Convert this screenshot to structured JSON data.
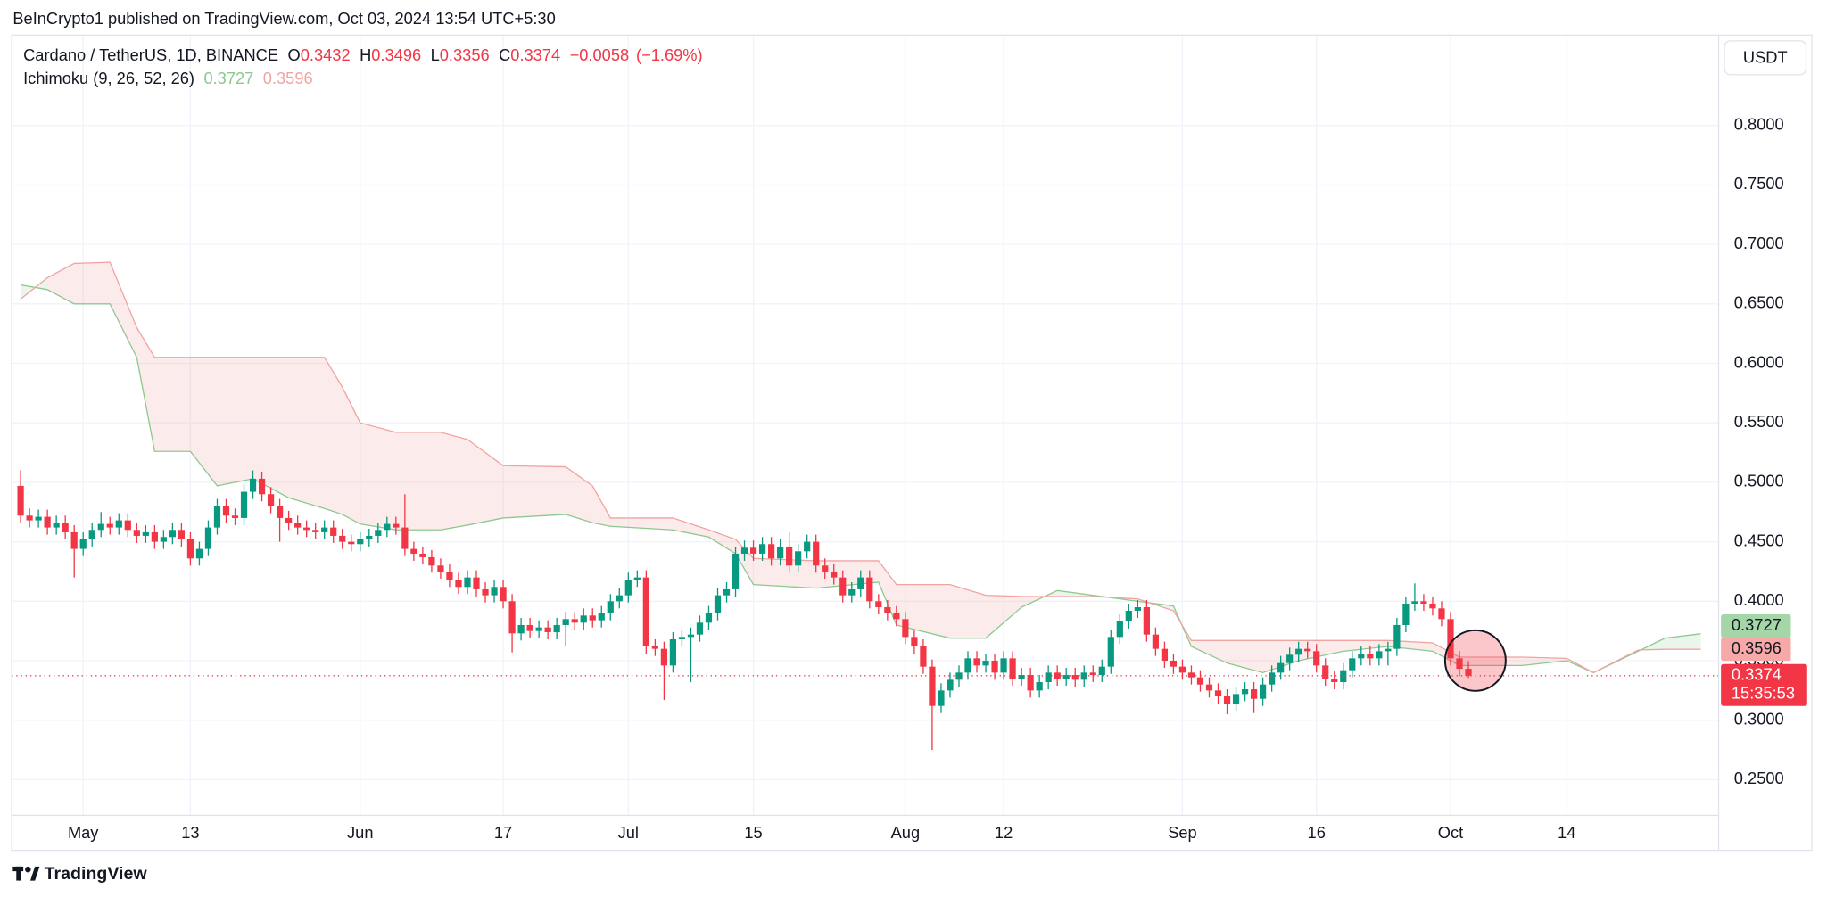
{
  "chart_data": {
    "type": "candlestick",
    "publisher": "BeInCrypto1 published on TradingView.com, Oct 03, 2024 13:54 UTC+5:30",
    "symbol": "Cardano / TetherUS, 1D, BINANCE",
    "ohlc_labels": [
      "O",
      "H",
      "L",
      "C"
    ],
    "change": "−0.0058",
    "change_pct": "(−1.69%)",
    "indicator": "Ichimoku (9, 26, 52, 26)",
    "currency": "USDT",
    "countdown": "15:35:53",
    "brand": "TradingView",
    "up_color": "#089981",
    "down_color": "#f23645",
    "grid": true,
    "xlim": [
      "Apr 23",
      "Oct 31"
    ],
    "ylim": [
      0.22,
      0.876
    ],
    "xticks": [
      {
        "value": "May 1",
        "label": "May"
      },
      {
        "value": "May 13",
        "label": "13"
      },
      {
        "value": "Jun 1",
        "label": "Jun"
      },
      {
        "value": "Jun 17",
        "label": "17"
      },
      {
        "value": "Jul 1",
        "label": "Jul"
      },
      {
        "value": "Jul 15",
        "label": "15"
      },
      {
        "value": "Aug 1",
        "label": "Aug"
      },
      {
        "value": "Aug 12",
        "label": "12"
      },
      {
        "value": "Sep 1",
        "label": "Sep"
      },
      {
        "value": "Sep 16",
        "label": "16"
      },
      {
        "value": "Oct 1",
        "label": "Oct"
      },
      {
        "value": "Oct 14",
        "label": "14"
      }
    ],
    "yticks": [
      {
        "value": 0.25,
        "label": "0.2500"
      },
      {
        "value": 0.3,
        "label": "0.3000"
      },
      {
        "value": 0.35,
        "label": "0.3500"
      },
      {
        "value": 0.4,
        "label": "0.4000"
      },
      {
        "value": 0.45,
        "label": "0.4500"
      },
      {
        "value": 0.5,
        "label": "0.5000"
      },
      {
        "value": 0.55,
        "label": "0.5500"
      },
      {
        "value": 0.6,
        "label": "0.6000"
      },
      {
        "value": 0.65,
        "label": "0.6500"
      },
      {
        "value": 0.7,
        "label": "0.7000"
      },
      {
        "value": 0.75,
        "label": "0.7500"
      },
      {
        "value": 0.8,
        "label": "0.8000"
      }
    ],
    "x": [
      "Apr 24",
      "Apr 25",
      "Apr 26",
      "Apr 27",
      "Apr 28",
      "Apr 29",
      "Apr 30",
      "May 1",
      "May 2",
      "May 3",
      "May 4",
      "May 5",
      "May 6",
      "May 7",
      "May 8",
      "May 9",
      "May 10",
      "May 11",
      "May 12",
      "May 13",
      "May 14",
      "May 15",
      "May 16",
      "May 17",
      "May 18",
      "May 19",
      "May 20",
      "May 21",
      "May 22",
      "May 23",
      "May 24",
      "May 25",
      "May 26",
      "May 27",
      "May 28",
      "May 29",
      "May 30",
      "May 31",
      "Jun 1",
      "Jun 2",
      "Jun 3",
      "Jun 4",
      "Jun 5",
      "Jun 6",
      "Jun 7",
      "Jun 8",
      "Jun 9",
      "Jun 10",
      "Jun 11",
      "Jun 12",
      "Jun 13",
      "Jun 14",
      "Jun 15",
      "Jun 16",
      "Jun 17",
      "Jun 18",
      "Jun 19",
      "Jun 20",
      "Jun 21",
      "Jun 22",
      "Jun 23",
      "Jun 24",
      "Jun 25",
      "Jun 26",
      "Jun 27",
      "Jun 28",
      "Jun 29",
      "Jun 30",
      "Jul 1",
      "Jul 2",
      "Jul 3",
      "Jul 4",
      "Jul 5",
      "Jul 6",
      "Jul 7",
      "Jul 8",
      "Jul 9",
      "Jul 10",
      "Jul 11",
      "Jul 12",
      "Jul 13",
      "Jul 14",
      "Jul 15",
      "Jul 16",
      "Jul 17",
      "Jul 18",
      "Jul 19",
      "Jul 20",
      "Jul 21",
      "Jul 22",
      "Jul 23",
      "Jul 24",
      "Jul 25",
      "Jul 26",
      "Jul 27",
      "Jul 28",
      "Jul 29",
      "Jul 30",
      "Jul 31",
      "Aug 1",
      "Aug 2",
      "Aug 3",
      "Aug 4",
      "Aug 5",
      "Aug 6",
      "Aug 7",
      "Aug 8",
      "Aug 9",
      "Aug 10",
      "Aug 11",
      "Aug 12",
      "Aug 13",
      "Aug 14",
      "Aug 15",
      "Aug 16",
      "Aug 17",
      "Aug 18",
      "Aug 19",
      "Aug 20",
      "Aug 21",
      "Aug 22",
      "Aug 23",
      "Aug 24",
      "Aug 25",
      "Aug 26",
      "Aug 27",
      "Aug 28",
      "Aug 29",
      "Aug 30",
      "Aug 31",
      "Sep 1",
      "Sep 2",
      "Sep 3",
      "Sep 4",
      "Sep 5",
      "Sep 6",
      "Sep 7",
      "Sep 8",
      "Sep 9",
      "Sep 10",
      "Sep 11",
      "Sep 12",
      "Sep 13",
      "Sep 14",
      "Sep 15",
      "Sep 16",
      "Sep 17",
      "Sep 18",
      "Sep 19",
      "Sep 20",
      "Sep 21",
      "Sep 22",
      "Sep 23",
      "Sep 24",
      "Sep 25",
      "Sep 26",
      "Sep 27",
      "Sep 28",
      "Sep 29",
      "Sep 30",
      "Oct 1",
      "Oct 2",
      "Oct 3"
    ],
    "open": [
      0.497,
      0.472,
      0.468,
      0.471,
      0.462,
      0.466,
      0.458,
      0.444,
      0.452,
      0.46,
      0.465,
      0.462,
      0.468,
      0.46,
      0.455,
      0.458,
      0.45,
      0.454,
      0.46,
      0.452,
      0.436,
      0.444,
      0.462,
      0.48,
      0.472,
      0.47,
      0.492,
      0.503,
      0.49,
      0.48,
      0.47,
      0.466,
      0.462,
      0.46,
      0.458,
      0.462,
      0.455,
      0.45,
      0.448,
      0.452,
      0.455,
      0.46,
      0.465,
      0.462,
      0.444,
      0.44,
      0.437,
      0.43,
      0.425,
      0.418,
      0.412,
      0.42,
      0.41,
      0.405,
      0.412,
      0.4,
      0.373,
      0.38,
      0.375,
      0.378,
      0.374,
      0.38,
      0.385,
      0.382,
      0.388,
      0.384,
      0.39,
      0.4,
      0.405,
      0.418,
      0.42,
      0.362,
      0.36,
      0.346,
      0.368,
      0.37,
      0.372,
      0.382,
      0.39,
      0.405,
      0.41,
      0.44,
      0.445,
      0.44,
      0.448,
      0.436,
      0.446,
      0.43,
      0.442,
      0.45,
      0.43,
      0.425,
      0.42,
      0.405,
      0.41,
      0.42,
      0.4,
      0.395,
      0.39,
      0.385,
      0.37,
      0.362,
      0.345,
      0.312,
      0.325,
      0.334,
      0.34,
      0.352,
      0.346,
      0.35,
      0.34,
      0.352,
      0.335,
      0.338,
      0.325,
      0.332,
      0.34,
      0.335,
      0.338,
      0.334,
      0.34,
      0.338,
      0.345,
      0.37,
      0.383,
      0.392,
      0.395,
      0.372,
      0.36,
      0.35,
      0.345,
      0.34,
      0.336,
      0.33,
      0.325,
      0.32,
      0.314,
      0.322,
      0.326,
      0.318,
      0.33,
      0.34,
      0.348,
      0.355,
      0.36,
      0.358,
      0.346,
      0.335,
      0.332,
      0.342,
      0.352,
      0.356,
      0.352,
      0.358,
      0.36,
      0.38,
      0.398,
      0.4,
      0.398,
      0.394,
      0.385,
      0.352,
      0.3432
    ],
    "high": [
      0.51,
      0.478,
      0.477,
      0.477,
      0.472,
      0.472,
      0.464,
      0.458,
      0.466,
      0.475,
      0.471,
      0.474,
      0.474,
      0.466,
      0.464,
      0.464,
      0.46,
      0.466,
      0.466,
      0.458,
      0.45,
      0.468,
      0.486,
      0.486,
      0.478,
      0.498,
      0.51,
      0.509,
      0.496,
      0.486,
      0.476,
      0.472,
      0.468,
      0.466,
      0.468,
      0.468,
      0.461,
      0.456,
      0.458,
      0.461,
      0.466,
      0.471,
      0.471,
      0.49,
      0.45,
      0.446,
      0.443,
      0.436,
      0.431,
      0.424,
      0.426,
      0.426,
      0.416,
      0.418,
      0.418,
      0.406,
      0.386,
      0.386,
      0.384,
      0.384,
      0.386,
      0.391,
      0.391,
      0.394,
      0.394,
      0.396,
      0.406,
      0.411,
      0.424,
      0.426,
      0.426,
      0.368,
      0.366,
      0.374,
      0.376,
      0.378,
      0.388,
      0.396,
      0.411,
      0.416,
      0.446,
      0.451,
      0.451,
      0.454,
      0.454,
      0.452,
      0.458,
      0.448,
      0.456,
      0.456,
      0.436,
      0.431,
      0.426,
      0.416,
      0.426,
      0.426,
      0.406,
      0.401,
      0.396,
      0.391,
      0.376,
      0.368,
      0.351,
      0.331,
      0.34,
      0.346,
      0.358,
      0.358,
      0.356,
      0.356,
      0.358,
      0.358,
      0.344,
      0.344,
      0.338,
      0.346,
      0.346,
      0.344,
      0.344,
      0.346,
      0.346,
      0.351,
      0.376,
      0.389,
      0.398,
      0.401,
      0.401,
      0.378,
      0.366,
      0.356,
      0.351,
      0.346,
      0.342,
      0.336,
      0.331,
      0.326,
      0.328,
      0.332,
      0.332,
      0.336,
      0.346,
      0.354,
      0.361,
      0.366,
      0.366,
      0.364,
      0.352,
      0.341,
      0.348,
      0.358,
      0.362,
      0.362,
      0.364,
      0.366,
      0.386,
      0.404,
      0.415,
      0.406,
      0.404,
      0.4,
      0.391,
      0.358,
      0.3496
    ],
    "low": [
      0.466,
      0.462,
      0.462,
      0.456,
      0.456,
      0.452,
      0.42,
      0.438,
      0.446,
      0.454,
      0.456,
      0.456,
      0.454,
      0.449,
      0.449,
      0.444,
      0.444,
      0.448,
      0.446,
      0.43,
      0.43,
      0.438,
      0.456,
      0.466,
      0.464,
      0.464,
      0.486,
      0.484,
      0.474,
      0.45,
      0.46,
      0.456,
      0.454,
      0.452,
      0.452,
      0.449,
      0.444,
      0.442,
      0.442,
      0.446,
      0.449,
      0.454,
      0.456,
      0.438,
      0.434,
      0.431,
      0.424,
      0.419,
      0.412,
      0.406,
      0.406,
      0.404,
      0.399,
      0.399,
      0.394,
      0.357,
      0.367,
      0.369,
      0.369,
      0.368,
      0.368,
      0.362,
      0.376,
      0.376,
      0.378,
      0.378,
      0.384,
      0.394,
      0.399,
      0.412,
      0.356,
      0.354,
      0.317,
      0.34,
      0.362,
      0.332,
      0.366,
      0.376,
      0.384,
      0.399,
      0.404,
      0.434,
      0.434,
      0.434,
      0.43,
      0.43,
      0.424,
      0.424,
      0.436,
      0.424,
      0.419,
      0.414,
      0.399,
      0.399,
      0.404,
      0.394,
      0.389,
      0.384,
      0.379,
      0.364,
      0.356,
      0.339,
      0.275,
      0.306,
      0.319,
      0.328,
      0.334,
      0.34,
      0.34,
      0.334,
      0.334,
      0.329,
      0.329,
      0.319,
      0.319,
      0.326,
      0.329,
      0.329,
      0.328,
      0.328,
      0.332,
      0.332,
      0.339,
      0.364,
      0.377,
      0.386,
      0.366,
      0.354,
      0.344,
      0.339,
      0.334,
      0.33,
      0.324,
      0.319,
      0.314,
      0.305,
      0.308,
      0.316,
      0.306,
      0.312,
      0.324,
      0.334,
      0.342,
      0.349,
      0.352,
      0.34,
      0.329,
      0.326,
      0.326,
      0.336,
      0.346,
      0.346,
      0.346,
      0.346,
      0.354,
      0.374,
      0.392,
      0.392,
      0.388,
      0.379,
      0.346,
      0.337,
      0.3356
    ],
    "close": [
      0.472,
      0.468,
      0.471,
      0.462,
      0.466,
      0.458,
      0.444,
      0.452,
      0.46,
      0.465,
      0.462,
      0.468,
      0.46,
      0.455,
      0.458,
      0.45,
      0.454,
      0.46,
      0.452,
      0.436,
      0.444,
      0.462,
      0.48,
      0.472,
      0.47,
      0.492,
      0.503,
      0.49,
      0.48,
      0.47,
      0.466,
      0.462,
      0.46,
      0.458,
      0.462,
      0.455,
      0.45,
      0.448,
      0.452,
      0.455,
      0.46,
      0.465,
      0.462,
      0.444,
      0.44,
      0.437,
      0.43,
      0.425,
      0.418,
      0.412,
      0.42,
      0.41,
      0.405,
      0.412,
      0.4,
      0.373,
      0.38,
      0.375,
      0.378,
      0.374,
      0.38,
      0.385,
      0.382,
      0.388,
      0.384,
      0.39,
      0.4,
      0.405,
      0.418,
      0.42,
      0.362,
      0.36,
      0.346,
      0.368,
      0.37,
      0.372,
      0.382,
      0.39,
      0.405,
      0.41,
      0.44,
      0.445,
      0.44,
      0.448,
      0.436,
      0.446,
      0.43,
      0.442,
      0.45,
      0.43,
      0.425,
      0.42,
      0.405,
      0.41,
      0.42,
      0.4,
      0.395,
      0.39,
      0.385,
      0.37,
      0.362,
      0.345,
      0.312,
      0.325,
      0.334,
      0.34,
      0.352,
      0.346,
      0.35,
      0.34,
      0.352,
      0.335,
      0.338,
      0.325,
      0.332,
      0.34,
      0.335,
      0.338,
      0.334,
      0.34,
      0.338,
      0.345,
      0.37,
      0.383,
      0.392,
      0.395,
      0.372,
      0.36,
      0.35,
      0.345,
      0.34,
      0.336,
      0.33,
      0.325,
      0.32,
      0.314,
      0.322,
      0.326,
      0.318,
      0.33,
      0.34,
      0.348,
      0.355,
      0.36,
      0.358,
      0.346,
      0.335,
      0.332,
      0.342,
      0.352,
      0.356,
      0.352,
      0.358,
      0.36,
      0.38,
      0.398,
      0.4,
      0.398,
      0.394,
      0.385,
      0.352,
      0.3432,
      0.3374
    ],
    "ichimoku": {
      "x": [
        "Apr 24",
        "Apr 27",
        "Apr 30",
        "May 4",
        "May 7",
        "May 9",
        "May 13",
        "May 16",
        "May 20",
        "May 24",
        "May 28",
        "May 30",
        "Jun 1",
        "Jun 5",
        "Jun 10",
        "Jun 13",
        "Jun 17",
        "Jun 24",
        "Jun 27",
        "Jun 29",
        "Jul 6",
        "Jul 10",
        "Jul 13",
        "Jul 15",
        "Jul 22",
        "Jul 29",
        "Jul 31",
        "Aug 6",
        "Aug 10",
        "Aug 14",
        "Aug 18",
        "Aug 22",
        "Aug 27",
        "Aug 31",
        "Sep 2",
        "Sep 6",
        "Sep 10",
        "Sep 14",
        "Sep 19",
        "Sep 24",
        "Sep 29",
        "Oct 2",
        "Oct 9",
        "Oct 14",
        "Oct 17",
        "Oct 22",
        "Oct 25",
        "Oct 29"
      ],
      "span_a": {
        "color": "#8cc98f",
        "label_color": "#a5d6a7",
        "values": [
          0.666,
          0.662,
          0.65,
          0.65,
          0.605,
          0.526,
          0.526,
          0.497,
          0.503,
          0.487,
          0.478,
          0.473,
          0.465,
          0.46,
          0.46,
          0.464,
          0.47,
          0.473,
          0.466,
          0.463,
          0.46,
          0.454,
          0.44,
          0.414,
          0.411,
          0.416,
          0.38,
          0.369,
          0.369,
          0.395,
          0.409,
          0.405,
          0.4,
          0.396,
          0.362,
          0.348,
          0.34,
          0.35,
          0.358,
          0.362,
          0.358,
          0.346,
          0.346,
          0.35,
          0.34,
          0.358,
          0.369,
          0.3727
        ]
      },
      "span_b": {
        "color": "#f0a4a2",
        "label_color": "#f7a9a7",
        "values": [
          0.654,
          0.672,
          0.684,
          0.685,
          0.63,
          0.605,
          0.605,
          0.605,
          0.605,
          0.605,
          0.605,
          0.58,
          0.55,
          0.542,
          0.542,
          0.536,
          0.514,
          0.513,
          0.497,
          0.47,
          0.47,
          0.46,
          0.452,
          0.436,
          0.434,
          0.434,
          0.414,
          0.414,
          0.405,
          0.404,
          0.404,
          0.404,
          0.402,
          0.392,
          0.367,
          0.367,
          0.367,
          0.367,
          0.367,
          0.367,
          0.365,
          0.353,
          0.353,
          0.352,
          0.34,
          0.359,
          0.3596,
          0.3596
        ]
      }
    }
  }
}
